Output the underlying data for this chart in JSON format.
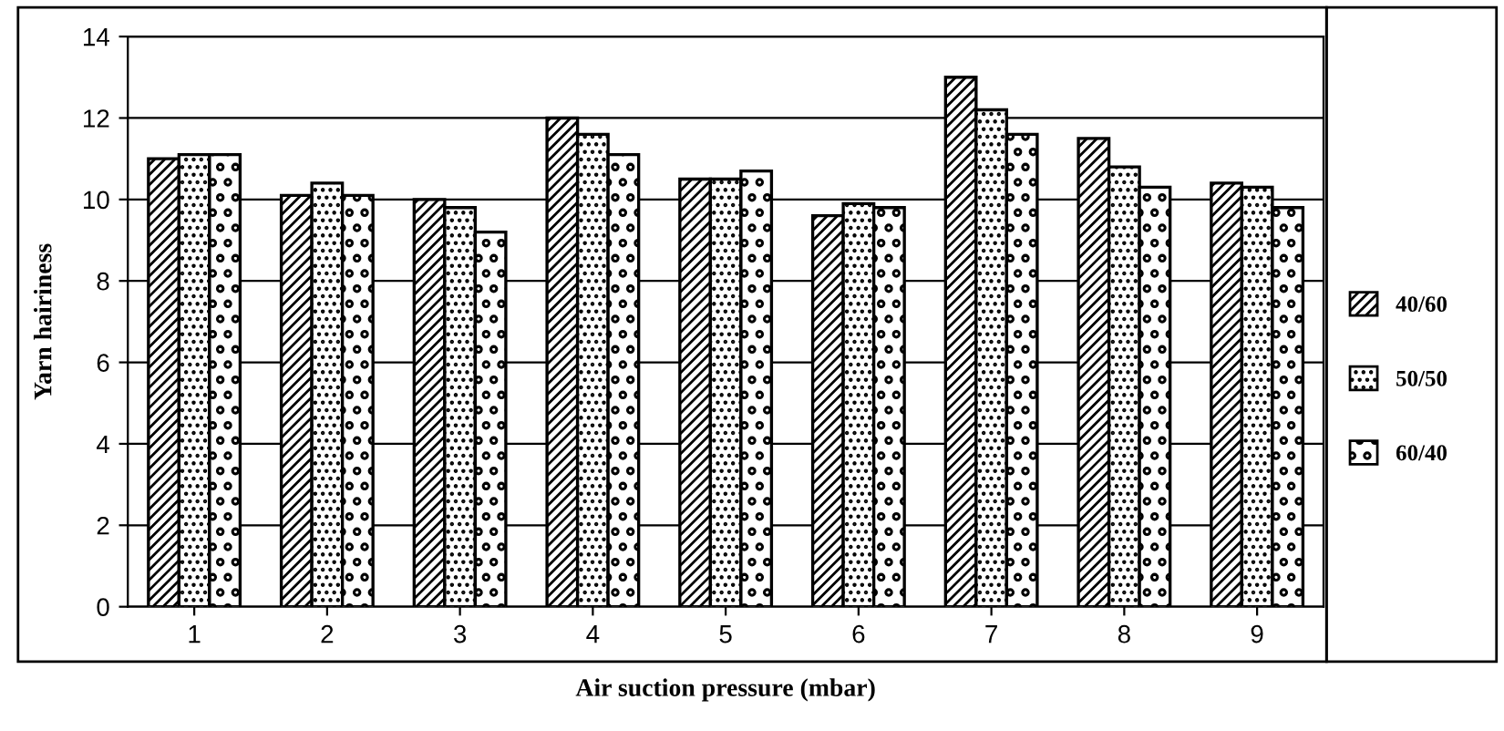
{
  "chart_data": {
    "type": "bar",
    "xlabel": "Air suction pressure (mbar)",
    "ylabel": "Yarn hairiness",
    "categories": [
      "1",
      "2",
      "3",
      "4",
      "5",
      "6",
      "7",
      "8",
      "9"
    ],
    "series": [
      {
        "name": "40/60",
        "color": "#000000",
        "values": [
          11.0,
          10.1,
          10.0,
          12.0,
          10.5,
          9.6,
          13.0,
          11.5,
          10.4
        ]
      },
      {
        "name": "50/50",
        "color": "#000000",
        "values": [
          11.1,
          10.4,
          9.8,
          11.6,
          10.5,
          9.9,
          12.2,
          10.8,
          10.3
        ]
      },
      {
        "name": "60/40",
        "color": "#000000",
        "values": [
          11.1,
          10.1,
          9.2,
          11.1,
          10.7,
          9.8,
          11.6,
          10.3,
          9.8
        ]
      }
    ],
    "ylim": [
      0,
      14
    ],
    "yticks": [
      0,
      2,
      4,
      6,
      8,
      10,
      12,
      14
    ],
    "grid": "y",
    "legend": "right"
  }
}
